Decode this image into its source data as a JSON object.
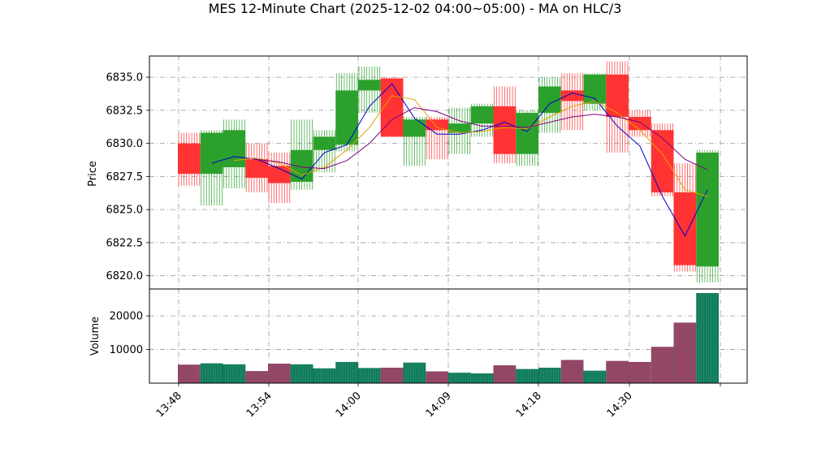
{
  "chart_data": {
    "type": "candlestick",
    "title": "MES 12-Minute Chart (2025-12-02 04:00~05:00) - MA on HLC/3",
    "price_panel": {
      "ylabel": "Price",
      "ylim": [
        6819.0,
        6836.6
      ],
      "yticks": [
        "6820.0",
        "6822.5",
        "6825.0",
        "6827.5",
        "6830.0",
        "6832.5",
        "6835.0"
      ],
      "grid": true
    },
    "volume_panel": {
      "ylabel": "Volume",
      "ylim": [
        0,
        28000
      ],
      "yticks": [
        "10000",
        "20000"
      ],
      "grid": true
    },
    "x_ticks": [
      "13:48",
      "13:54",
      "14:00",
      "14:09",
      "14:18",
      "14:30",
      ""
    ],
    "colors": {
      "up": "#2ca02c",
      "down": "#ff3333",
      "volume_up": "#127a5a",
      "volume_down": "#8c4a66",
      "ma_fast": "#0000cc",
      "ma_mid": "#e6a000",
      "ma_slow": "#800080",
      "grid": "#999999"
    },
    "candles": [
      {
        "open": 6830.0,
        "high": 6830.8,
        "low": 6826.8,
        "close": 6827.7,
        "volume": 5500
      },
      {
        "open": 6827.7,
        "high": 6831.0,
        "low": 6825.3,
        "close": 6830.8,
        "volume": 5900
      },
      {
        "open": 6828.2,
        "high": 6831.8,
        "low": 6826.6,
        "close": 6831.0,
        "volume": 5600
      },
      {
        "open": 6828.8,
        "high": 6830.0,
        "low": 6826.3,
        "close": 6827.4,
        "volume": 3600
      },
      {
        "open": 6828.3,
        "high": 6829.3,
        "low": 6825.5,
        "close": 6827.0,
        "volume": 5800
      },
      {
        "open": 6827.1,
        "high": 6831.8,
        "low": 6826.5,
        "close": 6829.5,
        "volume": 5600
      },
      {
        "open": 6829.5,
        "high": 6831.0,
        "low": 6827.8,
        "close": 6830.5,
        "volume": 4400
      },
      {
        "open": 6829.9,
        "high": 6835.3,
        "low": 6829.4,
        "close": 6834.0,
        "volume": 6300
      },
      {
        "open": 6834.0,
        "high": 6835.8,
        "low": 6832.3,
        "close": 6834.8,
        "volume": 4500
      },
      {
        "open": 6834.9,
        "high": 6835.0,
        "low": 6830.5,
        "close": 6830.5,
        "volume": 4600
      },
      {
        "open": 6830.5,
        "high": 6832.0,
        "low": 6828.3,
        "close": 6831.8,
        "volume": 6100
      },
      {
        "open": 6831.8,
        "high": 6832.0,
        "low": 6828.8,
        "close": 6831.0,
        "volume": 3500
      },
      {
        "open": 6830.8,
        "high": 6832.7,
        "low": 6829.2,
        "close": 6831.5,
        "volume": 3100
      },
      {
        "open": 6831.5,
        "high": 6833.0,
        "low": 6830.5,
        "close": 6832.8,
        "volume": 2900
      },
      {
        "open": 6832.8,
        "high": 6834.3,
        "low": 6828.5,
        "close": 6829.2,
        "volume": 5300
      },
      {
        "open": 6829.2,
        "high": 6832.5,
        "low": 6828.3,
        "close": 6832.3,
        "volume": 4200
      },
      {
        "open": 6832.3,
        "high": 6835.0,
        "low": 6830.8,
        "close": 6834.3,
        "volume": 4600
      },
      {
        "open": 6834.0,
        "high": 6835.3,
        "low": 6831.0,
        "close": 6833.2,
        "volume": 6900
      },
      {
        "open": 6833.0,
        "high": 6835.3,
        "low": 6832.5,
        "close": 6835.2,
        "volume": 3700
      },
      {
        "open": 6835.2,
        "high": 6836.2,
        "low": 6829.3,
        "close": 6832.0,
        "volume": 6600
      },
      {
        "open": 6832.0,
        "high": 6832.5,
        "low": 6830.5,
        "close": 6831.0,
        "volume": 6300
      },
      {
        "open": 6831.0,
        "high": 6831.5,
        "low": 6826.0,
        "close": 6826.3,
        "volume": 10800
      },
      {
        "open": 6826.3,
        "high": 6828.5,
        "low": 6820.3,
        "close": 6820.8,
        "volume": 18000
      },
      {
        "open": 6820.7,
        "high": 6829.5,
        "low": 6819.5,
        "close": 6829.3,
        "volume": 26800
      }
    ],
    "moving_averages": [
      {
        "name": "ma_fast",
        "color": "#0000cc",
        "values": [
          null,
          6828.5,
          6829.0,
          6828.8,
          6828.1,
          6827.3,
          6829.3,
          6829.9,
          6832.8,
          6834.5,
          6831.9,
          6830.7,
          6830.7,
          6831.0,
          6831.6,
          6830.9,
          6833.0,
          6833.8,
          6833.4,
          6831.3,
          6829.8,
          6826.0,
          6823.0,
          6826.5
        ]
      },
      {
        "name": "ma_mid",
        "color": "#e6a000",
        "values": [
          null,
          null,
          6828.7,
          6828.9,
          6828.5,
          6827.6,
          6828.2,
          6829.5,
          6831.2,
          6833.6,
          6833.3,
          6831.2,
          6830.8,
          6830.9,
          6831.2,
          6831.1,
          6832.0,
          6832.8,
          6833.2,
          6832.3,
          6831.0,
          6829.2,
          6826.5,
          6826.0
        ]
      },
      {
        "name": "ma_slow",
        "color": "#800080",
        "values": [
          null,
          null,
          null,
          6828.8,
          6828.6,
          6828.2,
          6828.1,
          6828.7,
          6830.0,
          6831.8,
          6832.7,
          6832.4,
          6831.7,
          6831.3,
          6831.3,
          6831.2,
          6831.6,
          6832.0,
          6832.2,
          6832.0,
          6831.6,
          6830.4,
          6828.8,
          6828.0
        ]
      }
    ]
  }
}
